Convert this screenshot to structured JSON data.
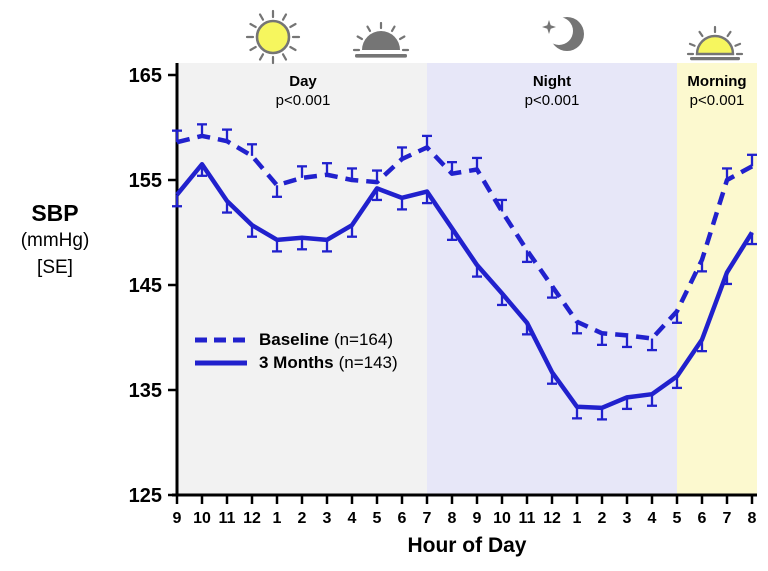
{
  "figure": {
    "y_axis_title_line1": "SBP",
    "y_axis_title_line2": "(mmHg)",
    "y_axis_title_line3": "[SE]",
    "x_axis_title": "Hour of Day"
  },
  "legend": {
    "entries": [
      {
        "name": "Baseline",
        "n": "(n=164)",
        "style": "dashed"
      },
      {
        "name": "3 Months",
        "n": "(n=143)",
        "style": "solid"
      }
    ]
  },
  "icons": [
    {
      "name": "sun-icon",
      "meaning": "day"
    },
    {
      "name": "sunset-icon",
      "meaning": "evening"
    },
    {
      "name": "moon-icon",
      "meaning": "night"
    },
    {
      "name": "sunrise-icon",
      "meaning": "morning"
    }
  ],
  "colors": {
    "line_blue": "#2121cd",
    "day_band": "#f2f2f2",
    "night_band": "#e7e7f8",
    "morning_band": "#fcf9cf",
    "icon_gray": "#757575",
    "sun_yellow": "#f6f65e",
    "axis_black": "#000000"
  },
  "chart_data": {
    "type": "line",
    "title": "",
    "xlabel": "Hour of Day",
    "ylabel": "SBP (mmHg) [SE]",
    "ylim": [
      125,
      165
    ],
    "y_ticks": [
      125,
      135,
      145,
      155,
      165
    ],
    "x_tick_labels": [
      "9",
      "10",
      "11",
      "12",
      "1",
      "2",
      "3",
      "4",
      "5",
      "6",
      "7",
      "8",
      "9",
      "10",
      "11",
      "12",
      "1",
      "2",
      "3",
      "4",
      "5",
      "6",
      "7",
      "8"
    ],
    "grid": false,
    "legend_position": "lower-left-inside",
    "regions": [
      {
        "label": "Day",
        "pvalue": "p<0.001",
        "start_index": 0,
        "end_index": 10,
        "color": "#f2f2f2"
      },
      {
        "label": "Night",
        "pvalue": "p<0.001",
        "start_index": 10,
        "end_index": 20,
        "color": "#e7e7f8"
      },
      {
        "label": "Morning",
        "pvalue": "p<0.001",
        "start_index": 20,
        "end_index": 23.2,
        "color": "#fcf9cf"
      }
    ],
    "series": [
      {
        "name": "Baseline (n=164)",
        "style": "dashed",
        "color": "#2121cd",
        "values": [
          158.6,
          159.2,
          158.7,
          157.3,
          154.5,
          155.2,
          155.5,
          155.0,
          154.8,
          157.0,
          158.1,
          155.6,
          156.0,
          152.0,
          148.3,
          144.9,
          141.5,
          140.4,
          140.2,
          139.9,
          142.5,
          147.4,
          155.0,
          156.3
        ],
        "se": 1.1,
        "error_bar_directions": [
          "up",
          "up",
          "up",
          "up",
          "down",
          "up",
          "up",
          "up",
          "up",
          "up",
          "up",
          "up",
          "up",
          "up",
          "down",
          "down",
          "down",
          "down",
          "down",
          "down",
          "down",
          "down",
          "up",
          "up"
        ]
      },
      {
        "name": "3 Months (n=143)",
        "style": "solid",
        "color": "#2121cd",
        "values": [
          153.6,
          156.5,
          153.0,
          150.7,
          149.3,
          149.5,
          149.3,
          150.7,
          154.2,
          153.3,
          153.9,
          150.4,
          146.9,
          144.2,
          141.4,
          136.7,
          133.4,
          133.3,
          134.3,
          134.6,
          136.3,
          139.8,
          146.2,
          150.0
        ],
        "se": 1.1,
        "error_bar_directions": [
          "down",
          "down",
          "down",
          "down",
          "down",
          "down",
          "down",
          "down",
          "down",
          "down",
          "down",
          "down",
          "down",
          "down",
          "down",
          "down",
          "down",
          "down",
          "down",
          "down",
          "down",
          "down",
          "down",
          "down"
        ]
      }
    ]
  }
}
